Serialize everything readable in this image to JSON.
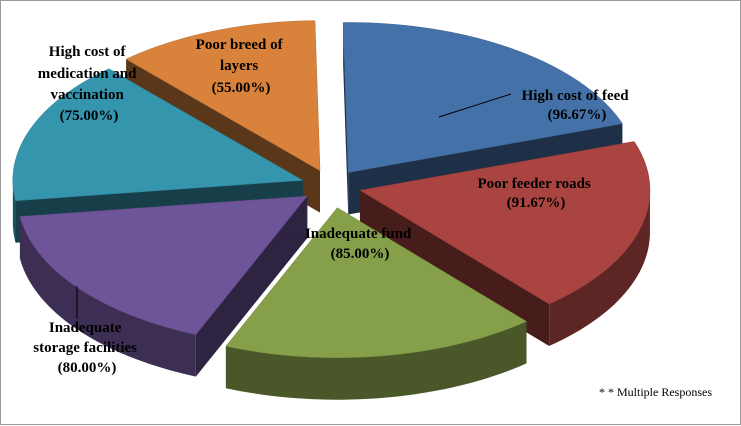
{
  "chart_data": {
    "type": "pie",
    "style": "exploded-3d",
    "slices": [
      {
        "label": "High cost  of feed",
        "value": 96.67,
        "value_label": "(96.67%)",
        "color": "#4472A8"
      },
      {
        "label": "Poor feeder roads",
        "value": 91.67,
        "value_label": "(91.67%)",
        "color": "#A94441"
      },
      {
        "label": "Inadequate fund",
        "value": 85.0,
        "value_label": "(85.00%)",
        "color": "#86A04A"
      },
      {
        "label": "Inadequate storage facilities",
        "value": 80.0,
        "value_label": "(80.00%)",
        "color": "#6E5499"
      },
      {
        "label": "High cost of medication and vaccination",
        "value": 75.0,
        "value_label": "(75.00%)",
        "color": "#3595AD"
      },
      {
        "label": "Poor breed of layers",
        "value": 55.0,
        "value_label": "(55.00%)",
        "color": "#D9823B"
      }
    ],
    "note": "* * Multiple Responses"
  }
}
